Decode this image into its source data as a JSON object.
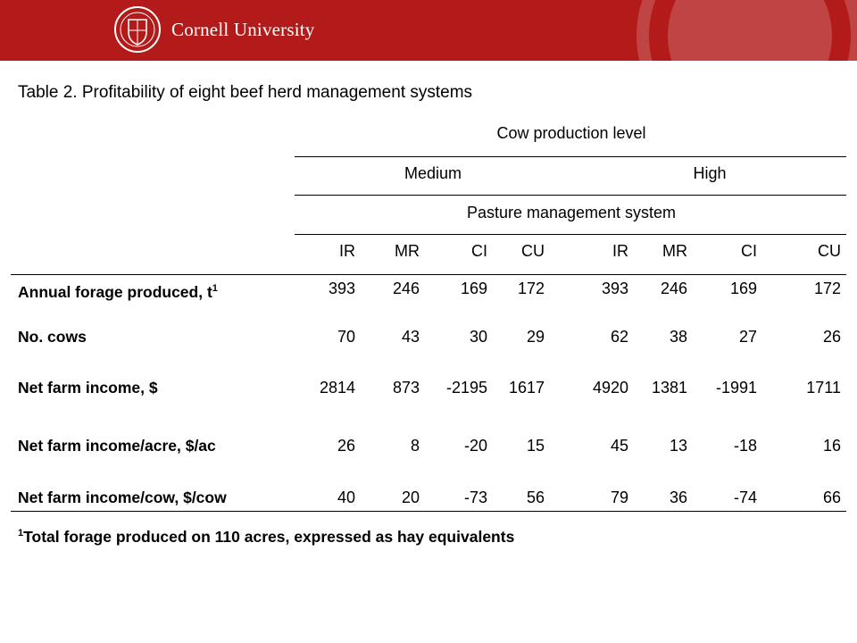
{
  "header": {
    "brand_text": "Cornell University",
    "brand_color": "#b31b1b"
  },
  "table": {
    "title": "Table 2. Profitability of eight beef herd management systems",
    "super_header": "Cow production level",
    "level_headers": [
      "Medium",
      "High"
    ],
    "sub_header": "Pasture management system",
    "columns": [
      "IR",
      "MR",
      "CI",
      "CU",
      "IR",
      "MR",
      "CI",
      "CU"
    ],
    "rows": [
      {
        "label": "Annual forage produced, t",
        "sup": "1",
        "values": [
          "393",
          "246",
          "169",
          "172",
          "393",
          "246",
          "169",
          "172"
        ]
      },
      {
        "label": "No. cows",
        "sup": "",
        "values": [
          "70",
          "43",
          "30",
          "29",
          "62",
          "38",
          "27",
          "26"
        ]
      },
      {
        "label": "Net farm income, $",
        "sup": "",
        "values": [
          "2814",
          "873",
          "-2195",
          "1617",
          "4920",
          "1381",
          "-1991",
          "1711"
        ]
      },
      {
        "label": "Net farm income/acre, $/ac",
        "sup": "",
        "values": [
          "26",
          "8",
          "-20",
          "15",
          "45",
          "13",
          "-18",
          "16"
        ]
      },
      {
        "label": "Net farm income/cow, $/cow",
        "sup": "",
        "values": [
          "40",
          "20",
          "-73",
          "56",
          "79",
          "36",
          "-74",
          "66"
        ]
      }
    ],
    "footnote_marker": "1",
    "footnote": "Total forage produced on 110 acres, expressed as hay equivalents"
  }
}
